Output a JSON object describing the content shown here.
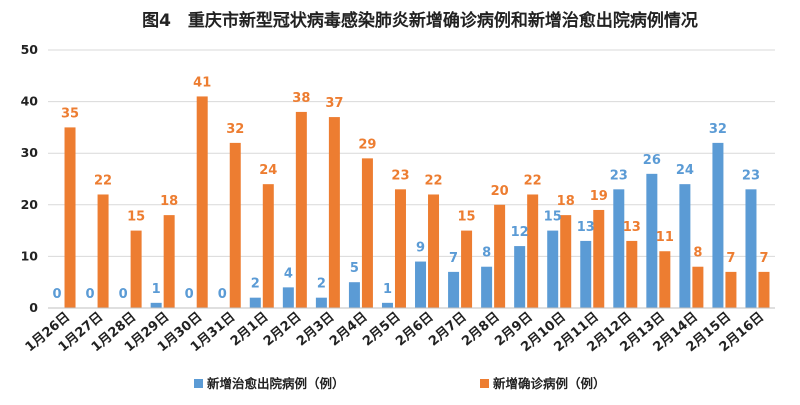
{
  "chart_data": {
    "type": "bar",
    "title": "图4　重庆市新型冠状病毒感染肺炎新增确诊病例和新增治愈出院病例情况",
    "categories": [
      "1月26日",
      "1月27日",
      "1月28日",
      "1月29日",
      "1月30日",
      "1月31日",
      "2月1日",
      "2月2日",
      "2月3日",
      "2月4日",
      "2月5日",
      "2月6日",
      "2月7日",
      "2月8日",
      "2月9日",
      "2月10日",
      "2月11日",
      "2月12日",
      "2月13日",
      "2月14日",
      "2月15日",
      "2月16日"
    ],
    "series": [
      {
        "name": "新增治愈出院病例（例）",
        "color": "#5B9BD5",
        "values": [
          0,
          0,
          0,
          1,
          0,
          0,
          2,
          4,
          2,
          5,
          1,
          9,
          7,
          8,
          12,
          15,
          13,
          23,
          26,
          24,
          32,
          23
        ]
      },
      {
        "name": "新增确诊病例（例）",
        "color": "#ED7D31",
        "values": [
          35,
          22,
          15,
          18,
          41,
          32,
          24,
          38,
          37,
          29,
          23,
          22,
          15,
          20,
          22,
          18,
          19,
          13,
          11,
          8,
          7,
          7
        ]
      }
    ],
    "ylim": [
      0,
      50
    ],
    "yticks": [
      0,
      10,
      20,
      30,
      40,
      50
    ],
    "grid": true,
    "legend_position": "bottom"
  }
}
